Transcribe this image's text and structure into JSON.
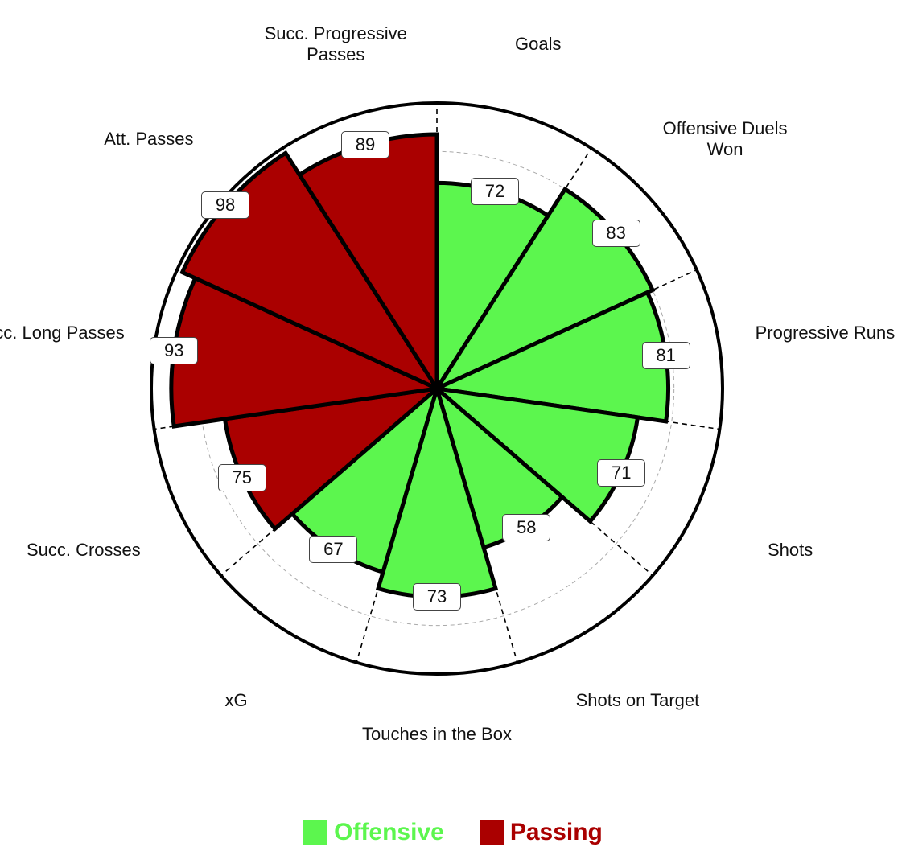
{
  "chart_data": {
    "type": "pizza",
    "categories": [
      "Goals",
      "Offensive Duels Won",
      "Progressive Runs",
      "Shots",
      "Shots on Target",
      "Touches in the Box",
      "xG",
      "Succ. Crosses",
      "Succ. Long Passes",
      "Att. Passes",
      "Succ. Progressive Passes"
    ],
    "series": [
      {
        "name": "Offensive",
        "color": "#5cf64e",
        "values": [
          72,
          83,
          81,
          71,
          58,
          73,
          67,
          null,
          null,
          null,
          null
        ]
      },
      {
        "name": "Passing",
        "color": "#aa0000",
        "values": [
          null,
          null,
          null,
          null,
          null,
          null,
          null,
          75,
          93,
          98,
          89
        ]
      }
    ],
    "ylim": [
      0,
      100
    ]
  }
}
